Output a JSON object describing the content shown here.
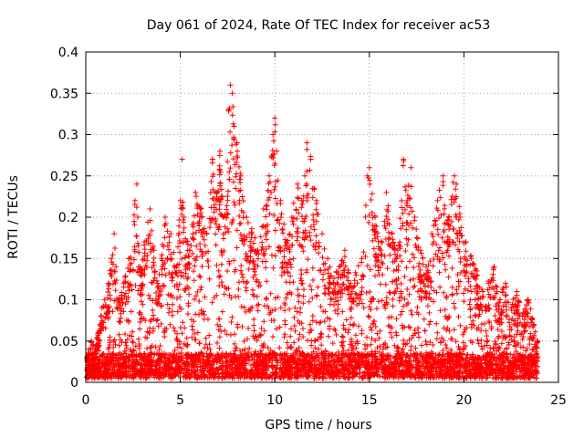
{
  "chart_data": {
    "type": "scatter",
    "title": "Day 061 of 2024, Rate Of TEC Index for receiver ac53",
    "xlabel": "GPS time / hours",
    "ylabel": "ROTI / TECUs",
    "xlim": [
      0,
      25
    ],
    "ylim": [
      0,
      0.4
    ],
    "xticks": [
      0,
      5,
      10,
      15,
      20,
      25
    ],
    "yticks": [
      0,
      0.05,
      0.1,
      0.15,
      0.2,
      0.25,
      0.3,
      0.35,
      0.4
    ],
    "xtick_labels": [
      "0",
      "5",
      "10",
      "15",
      "20",
      "25"
    ],
    "ytick_labels": [
      "0",
      "0.05",
      "0.1",
      "0.15",
      "0.2",
      "0.25",
      "0.3",
      "0.35",
      "0.4"
    ],
    "grid": true,
    "marker": "plus",
    "color": "#ff0000",
    "series": [
      {
        "x": [
          0.05,
          0.15,
          0.3,
          0.5,
          0.8,
          1.0,
          1.2,
          1.35,
          1.5,
          1.6,
          1.75,
          2.0,
          2.3,
          2.6,
          2.7,
          2.75,
          2.9,
          3.1,
          3.4,
          3.6,
          3.8,
          4.0,
          4.2,
          4.5,
          4.8,
          5.0,
          5.1,
          5.2,
          5.5,
          5.8,
          6.1,
          6.4,
          6.7,
          6.9,
          7.1,
          7.3,
          7.55,
          7.65,
          7.75,
          7.85,
          8.0,
          8.2,
          8.5,
          8.8,
          9.1,
          9.4,
          9.7,
          9.9,
          10.0,
          10.1,
          10.3,
          10.6,
          10.9,
          11.2,
          11.5,
          11.7,
          11.9,
          12.2,
          12.5,
          12.8,
          13.1,
          13.4,
          13.7,
          14.0,
          14.3,
          14.6,
          14.9,
          15.0,
          15.3,
          15.6,
          15.9,
          16.2,
          16.5,
          16.8,
          17.0,
          17.2,
          17.4,
          17.7,
          18.0,
          18.3,
          18.6,
          18.9,
          19.2,
          19.5,
          19.6,
          19.8,
          20.1,
          20.4,
          20.7,
          21.0,
          21.3,
          21.6,
          21.9,
          22.2,
          22.5,
          22.8,
          23.1,
          23.4,
          23.7,
          23.9
        ],
        "y": [
          0.03,
          0.04,
          0.05,
          0.04,
          0.08,
          0.1,
          0.12,
          0.15,
          0.18,
          0.14,
          0.1,
          0.12,
          0.15,
          0.22,
          0.24,
          0.2,
          0.13,
          0.17,
          0.21,
          0.16,
          0.12,
          0.15,
          0.2,
          0.18,
          0.14,
          0.22,
          0.27,
          0.2,
          0.16,
          0.23,
          0.21,
          0.18,
          0.27,
          0.22,
          0.28,
          0.2,
          0.33,
          0.36,
          0.35,
          0.31,
          0.29,
          0.25,
          0.2,
          0.18,
          0.16,
          0.21,
          0.25,
          0.3,
          0.32,
          0.28,
          0.22,
          0.17,
          0.2,
          0.24,
          0.22,
          0.29,
          0.27,
          0.22,
          0.18,
          0.15,
          0.12,
          0.14,
          0.16,
          0.12,
          0.13,
          0.15,
          0.25,
          0.26,
          0.2,
          0.16,
          0.23,
          0.18,
          0.16,
          0.27,
          0.22,
          0.26,
          0.2,
          0.16,
          0.14,
          0.18,
          0.22,
          0.25,
          0.2,
          0.25,
          0.24,
          0.2,
          0.17,
          0.15,
          0.13,
          0.11,
          0.12,
          0.14,
          0.1,
          0.12,
          0.09,
          0.11,
          0.08,
          0.1,
          0.07,
          0.05
        ],
        "ymin_envelope": 0.005
      }
    ]
  }
}
